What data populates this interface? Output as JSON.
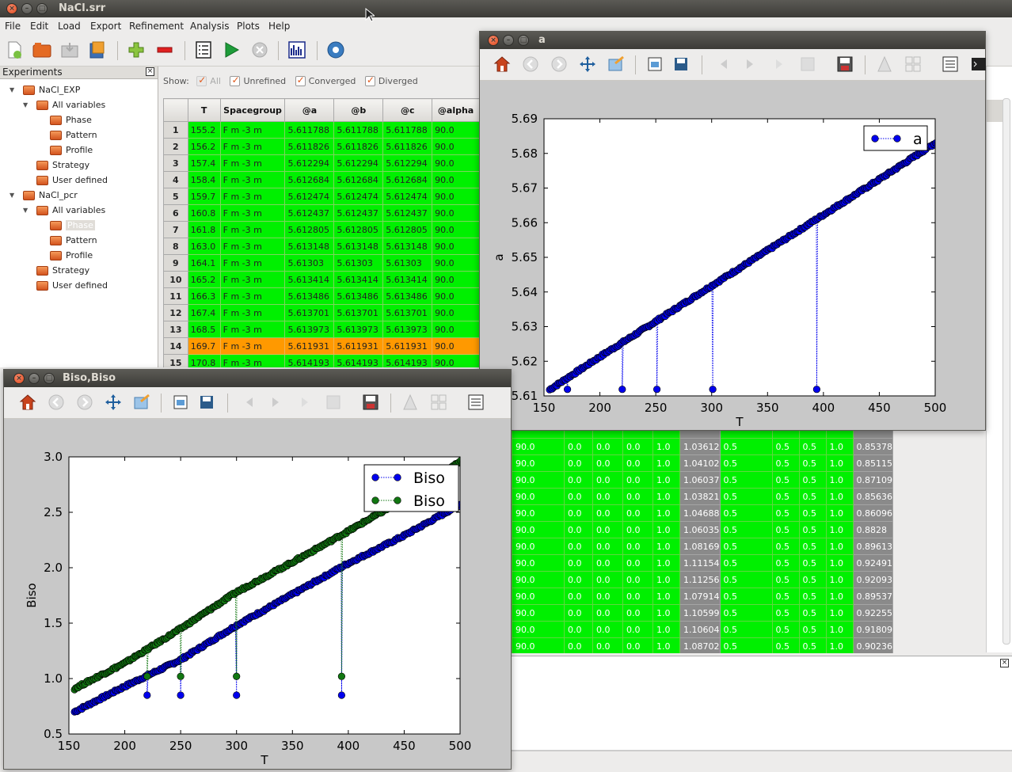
{
  "app": {
    "title": "NaCl.srr"
  },
  "menu": [
    "File",
    "Edit",
    "Load",
    "Export",
    "Refinement",
    "Analysis",
    "Plots",
    "Help"
  ],
  "toolbar": {
    "icons": [
      "new-file-icon",
      "open-folder-icon",
      "save-icon",
      "export-icon",
      "add-icon",
      "remove-icon",
      "list-icon",
      "run-icon",
      "stop-icon",
      "plot-icon",
      "settings-icon"
    ]
  },
  "experiments": {
    "title": "Experiments",
    "tree": [
      "NaCl_EXP",
      "All variables",
      "Phase",
      "Pattern",
      "Profile",
      "Strategy",
      "User defined",
      "NaCl_pcr",
      "All variables",
      "Phase",
      "Pattern",
      "Profile",
      "Strategy",
      "User defined"
    ]
  },
  "show": {
    "label": "Show:",
    "all": "All",
    "unrefined": "Unrefined",
    "converged": "Converged",
    "diverged": "Diverged"
  },
  "table": {
    "headers": [
      "T",
      "Spacegroup",
      "@a",
      "@b",
      "@c",
      "@alpha"
    ],
    "rows": [
      {
        "n": "1",
        "T": "155.2",
        "sg": "F m -3 m",
        "a": "5.611788",
        "b": "5.611788",
        "c": "5.611788",
        "alpha": "90.0",
        "status": "ok"
      },
      {
        "n": "2",
        "T": "156.2",
        "sg": "F m -3 m",
        "a": "5.611826",
        "b": "5.611826",
        "c": "5.611826",
        "alpha": "90.0",
        "status": "ok"
      },
      {
        "n": "3",
        "T": "157.4",
        "sg": "F m -3 m",
        "a": "5.612294",
        "b": "5.612294",
        "c": "5.612294",
        "alpha": "90.0",
        "status": "ok"
      },
      {
        "n": "4",
        "T": "158.4",
        "sg": "F m -3 m",
        "a": "5.612684",
        "b": "5.612684",
        "c": "5.612684",
        "alpha": "90.0",
        "status": "ok"
      },
      {
        "n": "5",
        "T": "159.7",
        "sg": "F m -3 m",
        "a": "5.612474",
        "b": "5.612474",
        "c": "5.612474",
        "alpha": "90.0",
        "status": "ok"
      },
      {
        "n": "6",
        "T": "160.8",
        "sg": "F m -3 m",
        "a": "5.612437",
        "b": "5.612437",
        "c": "5.612437",
        "alpha": "90.0",
        "status": "ok"
      },
      {
        "n": "7",
        "T": "161.8",
        "sg": "F m -3 m",
        "a": "5.612805",
        "b": "5.612805",
        "c": "5.612805",
        "alpha": "90.0",
        "status": "ok"
      },
      {
        "n": "8",
        "T": "163.0",
        "sg": "F m -3 m",
        "a": "5.613148",
        "b": "5.613148",
        "c": "5.613148",
        "alpha": "90.0",
        "status": "ok"
      },
      {
        "n": "9",
        "T": "164.1",
        "sg": "F m -3 m",
        "a": "5.61303",
        "b": "5.61303",
        "c": "5.61303",
        "alpha": "90.0",
        "status": "ok"
      },
      {
        "n": "10",
        "T": "165.2",
        "sg": "F m -3 m",
        "a": "5.613414",
        "b": "5.613414",
        "c": "5.613414",
        "alpha": "90.0",
        "status": "ok"
      },
      {
        "n": "11",
        "T": "166.3",
        "sg": "F m -3 m",
        "a": "5.613486",
        "b": "5.613486",
        "c": "5.613486",
        "alpha": "90.0",
        "status": "ok"
      },
      {
        "n": "12",
        "T": "167.4",
        "sg": "F m -3 m",
        "a": "5.613701",
        "b": "5.613701",
        "c": "5.613701",
        "alpha": "90.0",
        "status": "ok"
      },
      {
        "n": "13",
        "T": "168.5",
        "sg": "F m -3 m",
        "a": "5.613973",
        "b": "5.613973",
        "c": "5.613973",
        "alpha": "90.0",
        "status": "ok"
      },
      {
        "n": "14",
        "T": "169.7",
        "sg": "F m -3 m",
        "a": "5.611931",
        "b": "5.611931",
        "c": "5.611931",
        "alpha": "90.0",
        "status": "warn"
      },
      {
        "n": "15",
        "T": "170.8",
        "sg": "F m -3 m",
        "a": "5.614193",
        "b": "5.614193",
        "c": "5.614193",
        "alpha": "90.0",
        "status": "ok"
      }
    ]
  },
  "table2": {
    "rows": [
      [
        "90.0",
        "0.0",
        "0.0",
        "0.0",
        "1.0",
        "1.03612",
        "0.5",
        "0.5",
        "0.5",
        "1.0",
        "0.85378"
      ],
      [
        "90.0",
        "0.0",
        "0.0",
        "0.0",
        "1.0",
        "1.04102",
        "0.5",
        "0.5",
        "0.5",
        "1.0",
        "0.85115"
      ],
      [
        "90.0",
        "0.0",
        "0.0",
        "0.0",
        "1.0",
        "1.06037",
        "0.5",
        "0.5",
        "0.5",
        "1.0",
        "0.87109"
      ],
      [
        "90.0",
        "0.0",
        "0.0",
        "0.0",
        "1.0",
        "1.03821",
        "0.5",
        "0.5",
        "0.5",
        "1.0",
        "0.85636"
      ],
      [
        "90.0",
        "0.0",
        "0.0",
        "0.0",
        "1.0",
        "1.04688",
        "0.5",
        "0.5",
        "0.5",
        "1.0",
        "0.86096"
      ],
      [
        "90.0",
        "0.0",
        "0.0",
        "0.0",
        "1.0",
        "1.06035",
        "0.5",
        "0.5",
        "0.5",
        "1.0",
        "0.8828"
      ],
      [
        "90.0",
        "0.0",
        "0.0",
        "0.0",
        "1.0",
        "1.08169",
        "0.5",
        "0.5",
        "0.5",
        "1.0",
        "0.89613"
      ],
      [
        "90.0",
        "0.0",
        "0.0",
        "0.0",
        "1.0",
        "1.11154",
        "0.5",
        "0.5",
        "0.5",
        "1.0",
        "0.92491"
      ],
      [
        "90.0",
        "0.0",
        "0.0",
        "0.0",
        "1.0",
        "1.11256",
        "0.5",
        "0.5",
        "0.5",
        "1.0",
        "0.92093"
      ],
      [
        "90.0",
        "0.0",
        "0.0",
        "0.0",
        "1.0",
        "1.07914",
        "0.5",
        "0.5",
        "0.5",
        "1.0",
        "0.89537"
      ],
      [
        "90.0",
        "0.0",
        "0.0",
        "0.0",
        "1.0",
        "1.10599",
        "0.5",
        "0.5",
        "0.5",
        "1.0",
        "0.92255"
      ],
      [
        "90.0",
        "0.0",
        "0.0",
        "0.0",
        "1.0",
        "1.10604",
        "0.5",
        "0.5",
        "0.5",
        "1.0",
        "0.91809"
      ],
      [
        "90.0",
        "0.0",
        "0.0",
        "0.0",
        "1.0",
        "1.08702",
        "0.5",
        "0.5",
        "0.5",
        "1.0",
        "0.90236"
      ]
    ]
  },
  "plot_a": {
    "window_title": "a"
  },
  "plot_biso": {
    "window_title": "Biso,Biso"
  },
  "colors": {
    "blue": "#0000ee",
    "green": "#117711",
    "converged": "#00f000",
    "diverged": "#ff9900"
  },
  "chart_data": [
    {
      "type": "line",
      "xlabel": "T",
      "ylabel": "a",
      "xlim": [
        150,
        500
      ],
      "ylim": [
        5.61,
        5.69
      ],
      "xticks": [
        "150",
        "200",
        "250",
        "300",
        "350",
        "400",
        "450",
        "500"
      ],
      "yticks": [
        "5.61",
        "5.62",
        "5.63",
        "5.64",
        "5.65",
        "5.66",
        "5.67",
        "5.68",
        "5.69"
      ],
      "legend_position": "top-right",
      "series": [
        {
          "name": "a",
          "color": "#0000ee",
          "trend": [
            [
              155,
              5.6118
            ],
            [
              200,
              5.6213
            ],
            [
              250,
              5.6315
            ],
            [
              300,
              5.6418
            ],
            [
              350,
              5.652
            ],
            [
              400,
              5.6623
            ],
            [
              450,
              5.6725
            ],
            [
              500,
              5.683
            ]
          ],
          "outliers": [
            [
              171,
              5.6119
            ],
            [
              220,
              5.6119
            ],
            [
              251,
              5.6119
            ],
            [
              301,
              5.6119
            ],
            [
              394,
              5.6119
            ]
          ]
        }
      ]
    },
    {
      "type": "line",
      "xlabel": "T",
      "ylabel": "Biso",
      "xlim": [
        150,
        500
      ],
      "ylim": [
        0.5,
        3.0
      ],
      "xticks": [
        "150",
        "200",
        "250",
        "300",
        "350",
        "400",
        "450",
        "500"
      ],
      "yticks": [
        "0.5",
        "1.0",
        "1.5",
        "2.0",
        "2.5",
        "3.0"
      ],
      "legend_position": "top-right",
      "series": [
        {
          "name": "Biso",
          "color": "#0000ee",
          "trend": [
            [
              155,
              0.7
            ],
            [
              200,
              0.93
            ],
            [
              250,
              1.17
            ],
            [
              300,
              1.48
            ],
            [
              350,
              1.76
            ],
            [
              400,
              2.04
            ],
            [
              450,
              2.29
            ],
            [
              500,
              2.57
            ]
          ],
          "outliers": [
            [
              220,
              0.85
            ],
            [
              250,
              0.85
            ],
            [
              300,
              0.85
            ],
            [
              394,
              0.85
            ]
          ]
        },
        {
          "name": "Biso",
          "color": "#117711",
          "trend": [
            [
              155,
              0.91
            ],
            [
              200,
              1.14
            ],
            [
              250,
              1.45
            ],
            [
              300,
              1.78
            ],
            [
              350,
              2.05
            ],
            [
              400,
              2.33
            ],
            [
              450,
              2.62
            ],
            [
              500,
              2.96
            ]
          ],
          "outliers": [
            [
              220,
              1.02
            ],
            [
              250,
              1.02
            ],
            [
              300,
              1.02
            ],
            [
              394,
              1.02
            ]
          ]
        }
      ]
    }
  ]
}
